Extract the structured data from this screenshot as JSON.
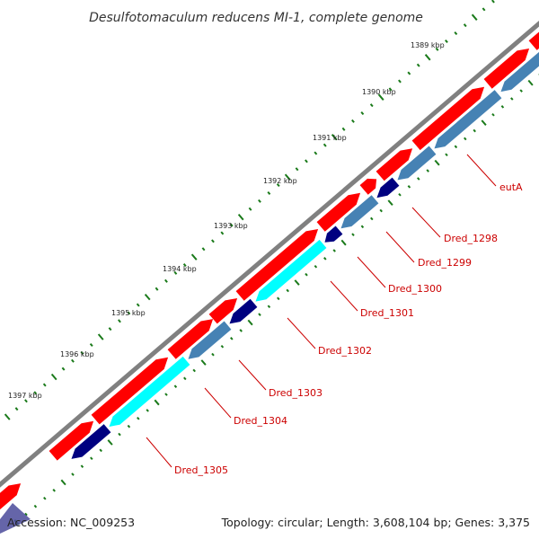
{
  "title": "Desulfotomaculum reducens MI-1, complete genome",
  "ticks": [
    "1389 kbp",
    "1390 kbp",
    "1391 kbp",
    "1392 kbp",
    "1393 kbp",
    "1394 kbp",
    "1395 kbp",
    "1396 kbp",
    "1397 kbp"
  ],
  "genes": [
    {
      "name": "eutA",
      "strand": "minus",
      "color": "#4682b4"
    },
    {
      "name": "Dred_1298",
      "strand": "minus",
      "color": "#4682b4"
    },
    {
      "name": "Dred_1299",
      "strand": "minus",
      "color": "#000080"
    },
    {
      "name": "Dred_1300",
      "strand": "minus",
      "color": "#4682b4"
    },
    {
      "name": "Dred_1301",
      "strand": "minus",
      "color": "#000080"
    },
    {
      "name": "Dred_1302",
      "strand": "minus",
      "color": "#00ffff"
    },
    {
      "name": "Dred_1303",
      "strand": "minus",
      "color": "#000080"
    },
    {
      "name": "Dred_1304",
      "strand": "minus",
      "color": "#4682b4"
    },
    {
      "name": "Dred_1305",
      "strand": "minus",
      "color": "#00ffff"
    }
  ],
  "colors": {
    "backbone": "#808080",
    "forward_feature": "#ff0000",
    "label": "#cc0000",
    "tick": "#1a7a1a"
  },
  "footer": {
    "accession": "Accession: NC_009253",
    "stats": "Topology: circular; Length: 3,608,104 bp; Genes: 3,375"
  }
}
